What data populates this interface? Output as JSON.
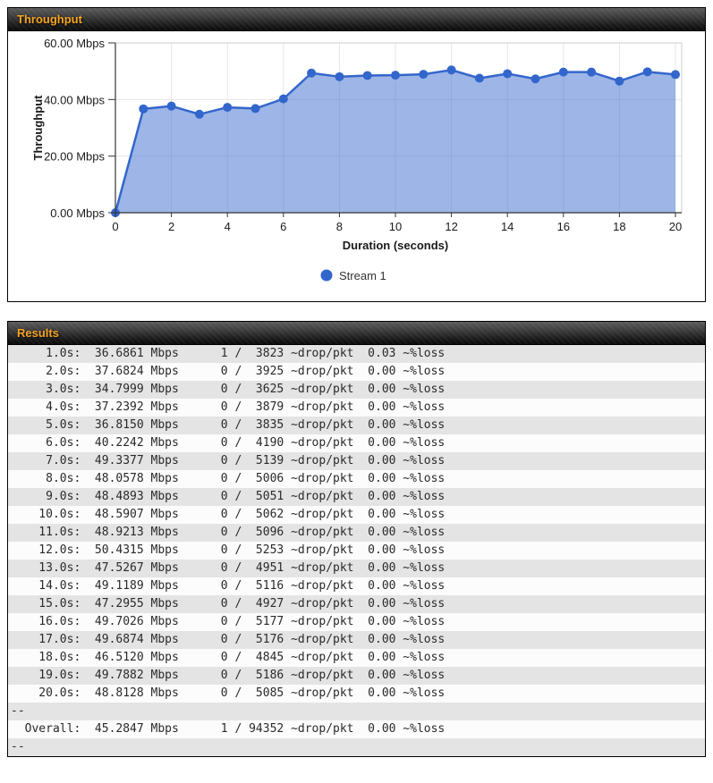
{
  "panels": {
    "throughput": {
      "title": "Throughput"
    },
    "results": {
      "title": "Results"
    }
  },
  "colors": {
    "header_title": "#f5a423",
    "chart_line": "#3366cc",
    "chart_marker": "#3366cc",
    "chart_fill": "rgba(51,102,204,0.48)",
    "row_alt_bg": "#e4e4e4"
  },
  "chart_data": {
    "type": "area",
    "title": "",
    "xlabel": "Duration (seconds)",
    "ylabel": "Throughput",
    "x": [
      0,
      1,
      2,
      3,
      4,
      5,
      6,
      7,
      8,
      9,
      10,
      11,
      12,
      13,
      14,
      15,
      16,
      17,
      18,
      19,
      20
    ],
    "series": [
      {
        "name": "Stream 1",
        "values": [
          0,
          36.6861,
          37.6824,
          34.7999,
          37.2392,
          36.815,
          40.2242,
          49.3377,
          48.0578,
          48.4893,
          48.5907,
          48.9213,
          50.4315,
          47.5267,
          49.1189,
          47.2955,
          49.7026,
          49.6874,
          46.512,
          49.7882,
          48.8128
        ]
      }
    ],
    "xlim": [
      0,
      20
    ],
    "ylim": [
      0,
      60
    ],
    "xticks": [
      0,
      2,
      4,
      6,
      8,
      10,
      12,
      14,
      16,
      18,
      20
    ],
    "yticks": [
      {
        "value": 0,
        "label": "0.00 Mbps"
      },
      {
        "value": 20,
        "label": "20.00 Mbps"
      },
      {
        "value": 40,
        "label": "40.00 Mbps"
      },
      {
        "value": 60,
        "label": "60.00 Mbps"
      }
    ],
    "grid": true,
    "legend_position": "bottom",
    "colors": {
      "line": "#3366cc",
      "marker": "#3366cc",
      "fill": "rgba(51,102,204,0.48)"
    }
  },
  "results": {
    "units": {
      "rate": "Mbps",
      "drop": "~drop/pkt",
      "loss": "~%loss"
    },
    "rows": [
      {
        "time": "1.0s",
        "mbps": "36.6861",
        "drops": "1",
        "pkts": "3823",
        "loss": "0.03"
      },
      {
        "time": "2.0s",
        "mbps": "37.6824",
        "drops": "0",
        "pkts": "3925",
        "loss": "0.00"
      },
      {
        "time": "3.0s",
        "mbps": "34.7999",
        "drops": "0",
        "pkts": "3625",
        "loss": "0.00"
      },
      {
        "time": "4.0s",
        "mbps": "37.2392",
        "drops": "0",
        "pkts": "3879",
        "loss": "0.00"
      },
      {
        "time": "5.0s",
        "mbps": "36.8150",
        "drops": "0",
        "pkts": "3835",
        "loss": "0.00"
      },
      {
        "time": "6.0s",
        "mbps": "40.2242",
        "drops": "0",
        "pkts": "4190",
        "loss": "0.00"
      },
      {
        "time": "7.0s",
        "mbps": "49.3377",
        "drops": "0",
        "pkts": "5139",
        "loss": "0.00"
      },
      {
        "time": "8.0s",
        "mbps": "48.0578",
        "drops": "0",
        "pkts": "5006",
        "loss": "0.00"
      },
      {
        "time": "9.0s",
        "mbps": "48.4893",
        "drops": "0",
        "pkts": "5051",
        "loss": "0.00"
      },
      {
        "time": "10.0s",
        "mbps": "48.5907",
        "drops": "0",
        "pkts": "5062",
        "loss": "0.00"
      },
      {
        "time": "11.0s",
        "mbps": "48.9213",
        "drops": "0",
        "pkts": "5096",
        "loss": "0.00"
      },
      {
        "time": "12.0s",
        "mbps": "50.4315",
        "drops": "0",
        "pkts": "5253",
        "loss": "0.00"
      },
      {
        "time": "13.0s",
        "mbps": "47.5267",
        "drops": "0",
        "pkts": "4951",
        "loss": "0.00"
      },
      {
        "time": "14.0s",
        "mbps": "49.1189",
        "drops": "0",
        "pkts": "5116",
        "loss": "0.00"
      },
      {
        "time": "15.0s",
        "mbps": "47.2955",
        "drops": "0",
        "pkts": "4927",
        "loss": "0.00"
      },
      {
        "time": "16.0s",
        "mbps": "49.7026",
        "drops": "0",
        "pkts": "5177",
        "loss": "0.00"
      },
      {
        "time": "17.0s",
        "mbps": "49.6874",
        "drops": "0",
        "pkts": "5176",
        "loss": "0.00"
      },
      {
        "time": "18.0s",
        "mbps": "46.5120",
        "drops": "0",
        "pkts": "4845",
        "loss": "0.00"
      },
      {
        "time": "19.0s",
        "mbps": "49.7882",
        "drops": "0",
        "pkts": "5186",
        "loss": "0.00"
      },
      {
        "time": "20.0s",
        "mbps": "48.8128",
        "drops": "0",
        "pkts": "5085",
        "loss": "0.00"
      },
      {
        "separator": "--"
      },
      {
        "time": "Overall",
        "mbps": "45.2847",
        "drops": "1",
        "pkts": "94352",
        "loss": "0.00"
      },
      {
        "separator": "--"
      }
    ]
  }
}
